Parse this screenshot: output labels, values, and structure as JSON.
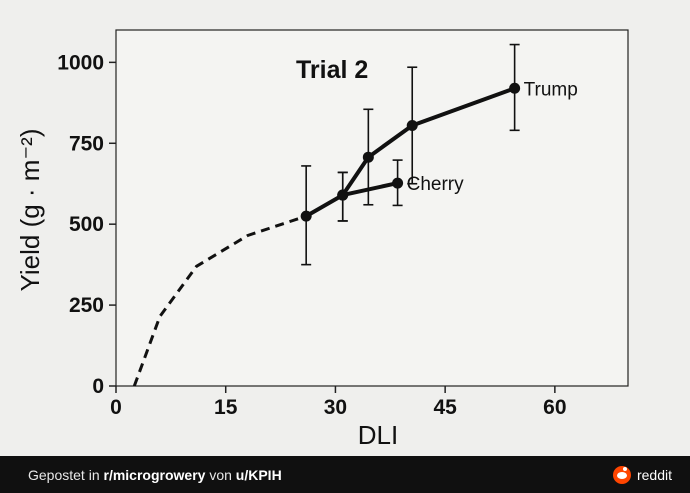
{
  "chart_data": {
    "type": "line",
    "title": "Trial 2",
    "xlabel": "DLI",
    "ylabel": "Yield (g · m⁻²)",
    "xlim": [
      0,
      70
    ],
    "ylim": [
      0,
      1100
    ],
    "x_ticks": [
      0,
      15,
      30,
      45,
      60
    ],
    "y_ticks": [
      0,
      250,
      500,
      750,
      1000
    ],
    "grid": false,
    "series": [
      {
        "name": "Trump",
        "style": "solid",
        "markers": true,
        "x": [
          26,
          31,
          34.5,
          40.5,
          54.5
        ],
        "y": [
          525,
          590,
          707,
          805,
          920
        ],
        "y_err_low": [
          375,
          510,
          560,
          625,
          790
        ],
        "y_err_high": [
          680,
          660,
          855,
          985,
          1055
        ]
      },
      {
        "name": "Cherry",
        "style": "solid",
        "markers": true,
        "x": [
          31,
          38.5
        ],
        "y": [
          590,
          627
        ],
        "y_err_low": [
          510,
          558
        ],
        "y_err_high": [
          660,
          698
        ]
      },
      {
        "style": "dashed",
        "markers": false,
        "x": [
          2.5,
          6,
          11,
          18,
          26,
          31,
          34.5
        ],
        "y": [
          0,
          215,
          370,
          465,
          525,
          590,
          707
        ]
      }
    ]
  },
  "footer": {
    "prefix": "Gepostet in ",
    "subreddit": "r/microgrowery",
    "middle": " von ",
    "user": "u/KPIH",
    "brand": "reddit"
  }
}
